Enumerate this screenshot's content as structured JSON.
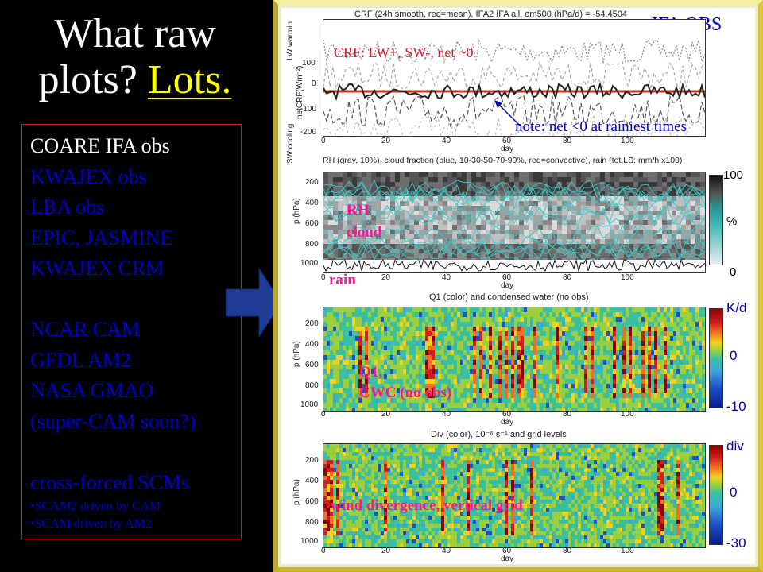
{
  "slide": {
    "title_prefix": "What raw plots? ",
    "title_highlight": "Lots.",
    "list": [
      "COARE  IFA obs",
      "KWAJEX obs",
      "LBA obs",
      "EPIC, JASMINE",
      "KWAJEX CRM",
      "",
      "NCAR CAM",
      "GFDL AM2",
      "NASA GMAO",
      "(super-CAM soon?)",
      "",
      "cross-forced SCMs"
    ],
    "sublist": [
      "•SCAM2 driven by CAM",
      "•SCAM driven by AM2"
    ],
    "colors": {
      "title": "#ffffff",
      "highlight": "#ffff00",
      "list_active": "#ffffff",
      "list": "#0000cc",
      "box_border": "#d21e1e",
      "arrow": "#1e3c96"
    }
  },
  "panel_label": "IFA OBS",
  "panels": {
    "crf": {
      "title": "CRF (24h smooth, red=mean), IFA2 IFA all, om500 (hPa/d) = -54.4504",
      "ylabel_a": "LW:warmin",
      "ylabel_b": "netCRF(Wm⁻²)",
      "ylabel_c": "SW:cooling",
      "yticks": [
        "100",
        "0",
        "-100",
        "-200"
      ],
      "annotation": "CRF: LW+, SW-, net ~0",
      "note": "note: net <0 at rainiest times"
    },
    "rh": {
      "title": "RH (gray, 10%), cloud fraction (blue, 10-30-50-70-90%, red=convective), rain (tot,LS: mm/h x100)",
      "ylabel": "p (hPa)",
      "yticks": [
        "200",
        "400",
        "600",
        "800",
        "1000"
      ],
      "overlay": [
        "RH",
        "cloud"
      ],
      "rain": "rain",
      "colorbar": [
        "100",
        "%",
        "0"
      ]
    },
    "q1": {
      "title": "Q1 (color) and condensed water (no obs)",
      "ylabel": "p (hPa)",
      "yticks": [
        "200",
        "400",
        "600",
        "800",
        "1000"
      ],
      "overlay": [
        "Q1,",
        "CWC (no obs)"
      ],
      "colorbar": [
        "K/d",
        "0",
        "-10"
      ]
    },
    "div": {
      "title": "Div (color), 10⁻⁶ s⁻¹ and grid levels",
      "ylabel": "p (hPa)",
      "yticks": [
        "200",
        "400",
        "600",
        "800",
        "1000"
      ],
      "overlay": [
        "wind divergence, vertical grid"
      ],
      "colorbar": [
        "div",
        "0",
        "-30"
      ]
    }
  },
  "xticks": [
    "0",
    "20",
    "40",
    "60",
    "80",
    "100"
  ],
  "xlabel": "day"
}
